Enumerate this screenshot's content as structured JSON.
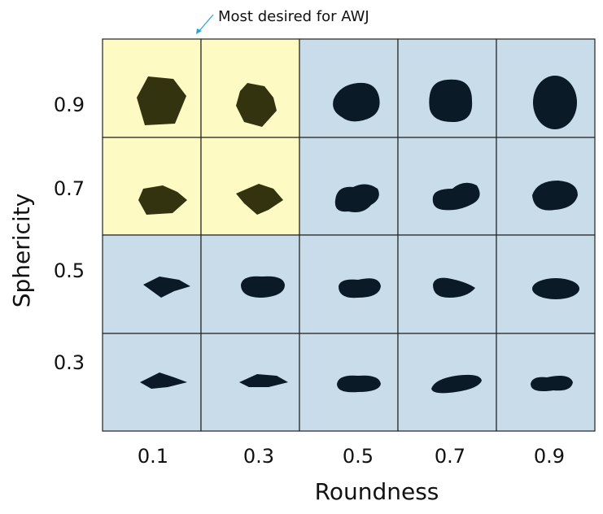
{
  "annotation": "Most desired for AWJ",
  "x_axis": {
    "title": "Roundness",
    "labels": [
      "0.1",
      "0.3",
      "0.5",
      "0.7",
      "0.9"
    ]
  },
  "y_axis": {
    "title": "Sphericity",
    "labels": [
      "0.9",
      "0.7",
      "0.5",
      "0.3"
    ]
  }
}
